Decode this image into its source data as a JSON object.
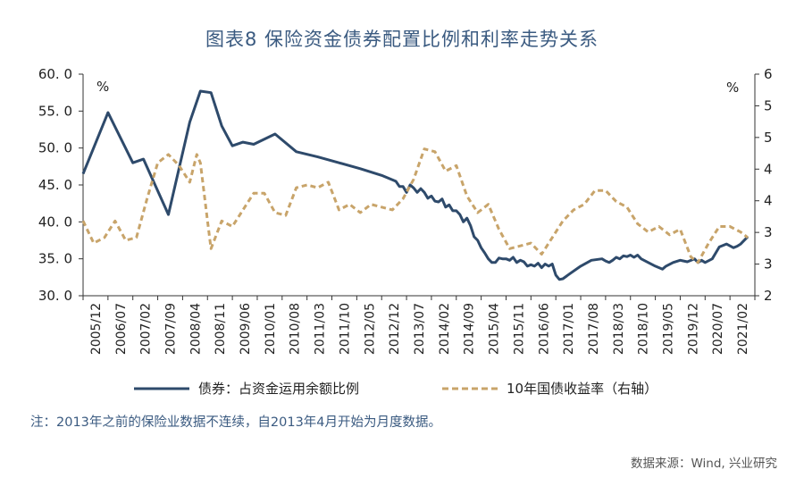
{
  "title": "图表8  保险资金债券配置比例和利率走势关系",
  "note": "注：2013年之前的保险业数据不连续，自2013年4月开始为月度数据。",
  "source": "数据来源：Wind, 兴业研究",
  "colors": {
    "bond": "#2e4a6b",
    "yield": "#c8a46a",
    "title": "#3a5a80"
  },
  "chart_data": {
    "type": "line",
    "left_axis": {
      "unit": "%",
      "ylim": [
        30,
        60
      ],
      "ticks": [
        "60. 0",
        "55. 0",
        "50. 0",
        "45. 0",
        "40. 0",
        "35. 0",
        "30. 0"
      ]
    },
    "right_axis": {
      "unit": "%",
      "ylim": [
        2,
        6
      ],
      "ticks": [
        "6",
        "5",
        "5",
        "4",
        "4",
        "3",
        "3",
        "2"
      ]
    },
    "x_ticks": [
      "2005/12",
      "2006/07",
      "2007/02",
      "2007/09",
      "2008/04",
      "2008/11",
      "2009/06",
      "2010/01",
      "2010/08",
      "2011/03",
      "2011/10",
      "2012/05",
      "2012/12",
      "2013/07",
      "2014/02",
      "2014/09",
      "2015/04",
      "2015/11",
      "2016/06",
      "2017/01",
      "2017/08",
      "2018/03",
      "2018/10",
      "2019/05",
      "2019/12",
      "2020/07",
      "2021/02"
    ],
    "legend_placement": "bottom",
    "series": [
      {
        "name": "债券：占资金运用余额比例",
        "axis": "left",
        "style": "solid",
        "points": [
          [
            "2005-12",
            46.5
          ],
          [
            "2006-07",
            54.8
          ],
          [
            "2007-02",
            48.0
          ],
          [
            "2007-05",
            48.5
          ],
          [
            "2007-12",
            41.0
          ],
          [
            "2008-06",
            53.5
          ],
          [
            "2008-09",
            57.7
          ],
          [
            "2008-12",
            57.5
          ],
          [
            "2009-03",
            53.0
          ],
          [
            "2009-06",
            50.3
          ],
          [
            "2009-09",
            50.8
          ],
          [
            "2009-12",
            50.5
          ],
          [
            "2010-06",
            51.9
          ],
          [
            "2010-12",
            49.5
          ],
          [
            "2011-06",
            48.8
          ],
          [
            "2011-12",
            48.0
          ],
          [
            "2012-06",
            47.2
          ],
          [
            "2012-12",
            46.3
          ],
          [
            "2013-04",
            45.5
          ],
          [
            "2013-05",
            44.8
          ],
          [
            "2013-06",
            44.8
          ],
          [
            "2013-07",
            44.0
          ],
          [
            "2013-08",
            45.0
          ],
          [
            "2013-09",
            44.6
          ],
          [
            "2013-10",
            44.0
          ],
          [
            "2013-11",
            44.5
          ],
          [
            "2013-12",
            44.0
          ],
          [
            "2014-01",
            43.2
          ],
          [
            "2014-02",
            43.5
          ],
          [
            "2014-03",
            42.8
          ],
          [
            "2014-04",
            42.7
          ],
          [
            "2014-05",
            43.1
          ],
          [
            "2014-06",
            42.0
          ],
          [
            "2014-07",
            42.3
          ],
          [
            "2014-08",
            41.5
          ],
          [
            "2014-09",
            41.5
          ],
          [
            "2014-10",
            41.0
          ],
          [
            "2014-11",
            40.0
          ],
          [
            "2014-12",
            40.5
          ],
          [
            "2015-01",
            39.5
          ],
          [
            "2015-02",
            38.0
          ],
          [
            "2015-03",
            37.5
          ],
          [
            "2015-04",
            36.5
          ],
          [
            "2015-05",
            35.8
          ],
          [
            "2015-06",
            35.0
          ],
          [
            "2015-07",
            34.5
          ],
          [
            "2015-08",
            34.5
          ],
          [
            "2015-09",
            35.1
          ],
          [
            "2015-10",
            35.0
          ],
          [
            "2015-11",
            35.0
          ],
          [
            "2015-12",
            34.8
          ],
          [
            "2016-01",
            35.2
          ],
          [
            "2016-02",
            34.5
          ],
          [
            "2016-03",
            34.8
          ],
          [
            "2016-04",
            34.6
          ],
          [
            "2016-05",
            34.0
          ],
          [
            "2016-06",
            34.2
          ],
          [
            "2016-07",
            34.0
          ],
          [
            "2016-08",
            34.4
          ],
          [
            "2016-09",
            33.8
          ],
          [
            "2016-10",
            34.3
          ],
          [
            "2016-11",
            34.0
          ],
          [
            "2016-12",
            34.3
          ],
          [
            "2017-01",
            32.8
          ],
          [
            "2017-02",
            32.2
          ],
          [
            "2017-03",
            32.3
          ],
          [
            "2017-05",
            33.0
          ],
          [
            "2017-08",
            34.0
          ],
          [
            "2017-11",
            34.8
          ],
          [
            "2018-02",
            35.0
          ],
          [
            "2018-03",
            34.7
          ],
          [
            "2018-04",
            34.5
          ],
          [
            "2018-05",
            34.8
          ],
          [
            "2018-06",
            35.2
          ],
          [
            "2018-07",
            35.0
          ],
          [
            "2018-08",
            35.4
          ],
          [
            "2018-09",
            35.3
          ],
          [
            "2018-10",
            35.5
          ],
          [
            "2018-11",
            35.2
          ],
          [
            "2018-12",
            35.5
          ],
          [
            "2019-01",
            35.0
          ],
          [
            "2019-03",
            34.5
          ],
          [
            "2019-05",
            34.0
          ],
          [
            "2019-07",
            33.6
          ],
          [
            "2019-08",
            34.0
          ],
          [
            "2019-10",
            34.5
          ],
          [
            "2019-12",
            34.8
          ],
          [
            "2020-02",
            34.6
          ],
          [
            "2020-04",
            35.0
          ],
          [
            "2020-05",
            34.5
          ],
          [
            "2020-06",
            34.8
          ],
          [
            "2020-07",
            34.5
          ],
          [
            "2020-09",
            35.0
          ],
          [
            "2020-10",
            35.8
          ],
          [
            "2020-11",
            36.6
          ],
          [
            "2021-01",
            37.0
          ],
          [
            "2021-03",
            36.5
          ],
          [
            "2021-04",
            36.7
          ],
          [
            "2021-05",
            37.0
          ],
          [
            "2021-07",
            38.0
          ]
        ]
      },
      {
        "name": "10年国债收益率（右轴）",
        "axis": "right",
        "style": "dashed",
        "points": [
          [
            "2005-12",
            3.35
          ],
          [
            "2006-03",
            2.95
          ],
          [
            "2006-06",
            3.05
          ],
          [
            "2006-09",
            3.35
          ],
          [
            "2006-12",
            3.0
          ],
          [
            "2007-03",
            3.05
          ],
          [
            "2007-06",
            3.75
          ],
          [
            "2007-09",
            4.4
          ],
          [
            "2007-12",
            4.55
          ],
          [
            "2008-03",
            4.35
          ],
          [
            "2008-06",
            4.05
          ],
          [
            "2008-08",
            4.55
          ],
          [
            "2008-09",
            4.4
          ],
          [
            "2008-11",
            3.35
          ],
          [
            "2008-12",
            2.85
          ],
          [
            "2009-03",
            3.35
          ],
          [
            "2009-06",
            3.25
          ],
          [
            "2009-09",
            3.55
          ],
          [
            "2009-12",
            3.85
          ],
          [
            "2010-03",
            3.85
          ],
          [
            "2010-06",
            3.5
          ],
          [
            "2010-09",
            3.45
          ],
          [
            "2010-12",
            3.95
          ],
          [
            "2011-03",
            4.0
          ],
          [
            "2011-06",
            3.95
          ],
          [
            "2011-09",
            4.05
          ],
          [
            "2011-12",
            3.55
          ],
          [
            "2012-03",
            3.65
          ],
          [
            "2012-06",
            3.5
          ],
          [
            "2012-09",
            3.65
          ],
          [
            "2012-12",
            3.6
          ],
          [
            "2013-03",
            3.55
          ],
          [
            "2013-06",
            3.75
          ],
          [
            "2013-09",
            4.1
          ],
          [
            "2013-12",
            4.65
          ],
          [
            "2014-03",
            4.6
          ],
          [
            "2014-06",
            4.25
          ],
          [
            "2014-09",
            4.35
          ],
          [
            "2014-12",
            3.8
          ],
          [
            "2015-03",
            3.5
          ],
          [
            "2015-06",
            3.65
          ],
          [
            "2015-09",
            3.2
          ],
          [
            "2015-12",
            2.85
          ],
          [
            "2016-03",
            2.9
          ],
          [
            "2016-06",
            2.95
          ],
          [
            "2016-09",
            2.75
          ],
          [
            "2016-12",
            3.05
          ],
          [
            "2017-03",
            3.35
          ],
          [
            "2017-06",
            3.55
          ],
          [
            "2017-09",
            3.65
          ],
          [
            "2017-12",
            3.9
          ],
          [
            "2018-03",
            3.9
          ],
          [
            "2018-06",
            3.7
          ],
          [
            "2018-09",
            3.6
          ],
          [
            "2018-12",
            3.3
          ],
          [
            "2019-03",
            3.15
          ],
          [
            "2019-06",
            3.25
          ],
          [
            "2019-09",
            3.1
          ],
          [
            "2019-12",
            3.2
          ],
          [
            "2020-03",
            2.7
          ],
          [
            "2020-05",
            2.6
          ],
          [
            "2020-08",
            2.95
          ],
          [
            "2020-11",
            3.25
          ],
          [
            "2021-02",
            3.25
          ],
          [
            "2021-05",
            3.15
          ],
          [
            "2021-07",
            3.05
          ]
        ]
      }
    ]
  }
}
